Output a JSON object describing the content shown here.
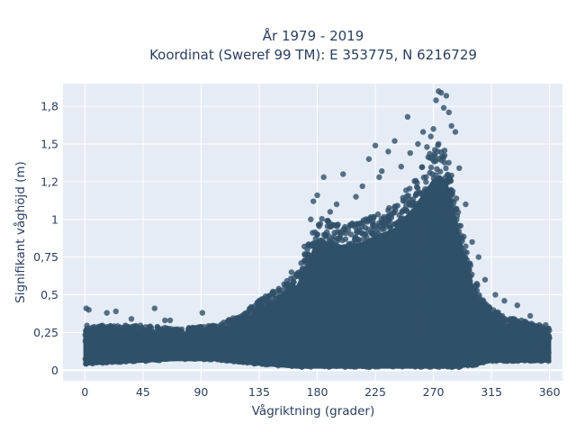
{
  "chart_data": {
    "type": "scatter",
    "title": [
      "År 1979 - 2019",
      "Koordinat (Sweref 99 TM): E 353775, N 6216729"
    ],
    "xlabel": "Vågriktning (grader)",
    "ylabel": "Signifikant våghöjd (m)",
    "xlim": [
      -17,
      370
    ],
    "ylim": [
      -0.07,
      1.9
    ],
    "xticks": [
      0,
      45,
      90,
      135,
      180,
      225,
      270,
      315,
      360
    ],
    "xtick_labels": [
      "0",
      "45",
      "90",
      "135",
      "180",
      "225",
      "270",
      "315",
      "360"
    ],
    "yticks": [
      0,
      0.25,
      0.5,
      0.75,
      1,
      1.25,
      1.5,
      1.75
    ],
    "ytick_labels": [
      "0",
      "0,25",
      "0,5",
      "0,75",
      "1",
      "1,2",
      "1,5",
      "1,8"
    ],
    "grid": true,
    "background_color": "#e5ecf6",
    "marker_color": "#2f5069",
    "envelope": {
      "description_of_shape": "upper and lower bounds of dense point cloud as direction/height pairs",
      "x": [
        0,
        20,
        45,
        70,
        100,
        120,
        135,
        150,
        165,
        175,
        180,
        190,
        200,
        215,
        225,
        240,
        255,
        265,
        270,
        275,
        280,
        285,
        290,
        295,
        300,
        305,
        310,
        315,
        325,
        340,
        360
      ],
      "upper": [
        0.27,
        0.27,
        0.27,
        0.25,
        0.27,
        0.33,
        0.42,
        0.5,
        0.6,
        0.8,
        0.92,
        0.9,
        0.88,
        0.9,
        0.95,
        1.0,
        1.15,
        1.28,
        1.35,
        1.38,
        1.33,
        1.15,
        0.95,
        0.75,
        0.6,
        0.5,
        0.42,
        0.38,
        0.32,
        0.3,
        0.25
      ],
      "lower": [
        0.04,
        0.05,
        0.06,
        0.07,
        0.07,
        0.05,
        0.04,
        0.03,
        0.02,
        0.02,
        0.02,
        0.02,
        0.02,
        0.02,
        0.02,
        0.02,
        0.02,
        0.02,
        0.02,
        0.02,
        0.02,
        0.02,
        0.02,
        0.03,
        0.03,
        0.04,
        0.05,
        0.06,
        0.06,
        0.06,
        0.06
      ]
    },
    "outliers": [
      {
        "x": 1,
        "y": 0.41
      },
      {
        "x": 3,
        "y": 0.4
      },
      {
        "x": 17,
        "y": 0.38
      },
      {
        "x": 24,
        "y": 0.39
      },
      {
        "x": 36,
        "y": 0.34
      },
      {
        "x": 54,
        "y": 0.41
      },
      {
        "x": 62,
        "y": 0.33
      },
      {
        "x": 66,
        "y": 0.33
      },
      {
        "x": 91,
        "y": 0.38
      },
      {
        "x": 145,
        "y": 0.49
      },
      {
        "x": 160,
        "y": 0.65
      },
      {
        "x": 170,
        "y": 0.82
      },
      {
        "x": 175,
        "y": 1.0
      },
      {
        "x": 177,
        "y": 1.12
      },
      {
        "x": 180,
        "y": 1.16
      },
      {
        "x": 185,
        "y": 1.28
      },
      {
        "x": 190,
        "y": 1.05
      },
      {
        "x": 195,
        "y": 1.1
      },
      {
        "x": 200,
        "y": 1.3
      },
      {
        "x": 210,
        "y": 1.15
      },
      {
        "x": 215,
        "y": 1.22
      },
      {
        "x": 220,
        "y": 1.4
      },
      {
        "x": 225,
        "y": 1.49
      },
      {
        "x": 228,
        "y": 1.28
      },
      {
        "x": 230,
        "y": 1.32
      },
      {
        "x": 235,
        "y": 1.45
      },
      {
        "x": 240,
        "y": 1.52
      },
      {
        "x": 245,
        "y": 1.35
      },
      {
        "x": 250,
        "y": 1.68
      },
      {
        "x": 252,
        "y": 1.44
      },
      {
        "x": 258,
        "y": 1.5
      },
      {
        "x": 262,
        "y": 1.58
      },
      {
        "x": 265,
        "y": 1.48
      },
      {
        "x": 268,
        "y": 1.55
      },
      {
        "x": 270,
        "y": 1.6
      },
      {
        "x": 272,
        "y": 1.79
      },
      {
        "x": 274,
        "y": 1.85
      },
      {
        "x": 276,
        "y": 1.84
      },
      {
        "x": 278,
        "y": 1.74
      },
      {
        "x": 280,
        "y": 1.82
      },
      {
        "x": 282,
        "y": 1.71
      },
      {
        "x": 284,
        "y": 1.62
      },
      {
        "x": 287,
        "y": 1.58
      },
      {
        "x": 290,
        "y": 1.34
      },
      {
        "x": 295,
        "y": 1.1
      },
      {
        "x": 300,
        "y": 0.85
      },
      {
        "x": 305,
        "y": 0.75
      },
      {
        "x": 310,
        "y": 0.6
      },
      {
        "x": 318,
        "y": 0.5
      },
      {
        "x": 325,
        "y": 0.46
      },
      {
        "x": 335,
        "y": 0.43
      },
      {
        "x": 345,
        "y": 0.36
      },
      {
        "x": 352,
        "y": 0.3
      },
      {
        "x": 357,
        "y": 0.3
      }
    ],
    "point_count_rendered": 2600
  }
}
